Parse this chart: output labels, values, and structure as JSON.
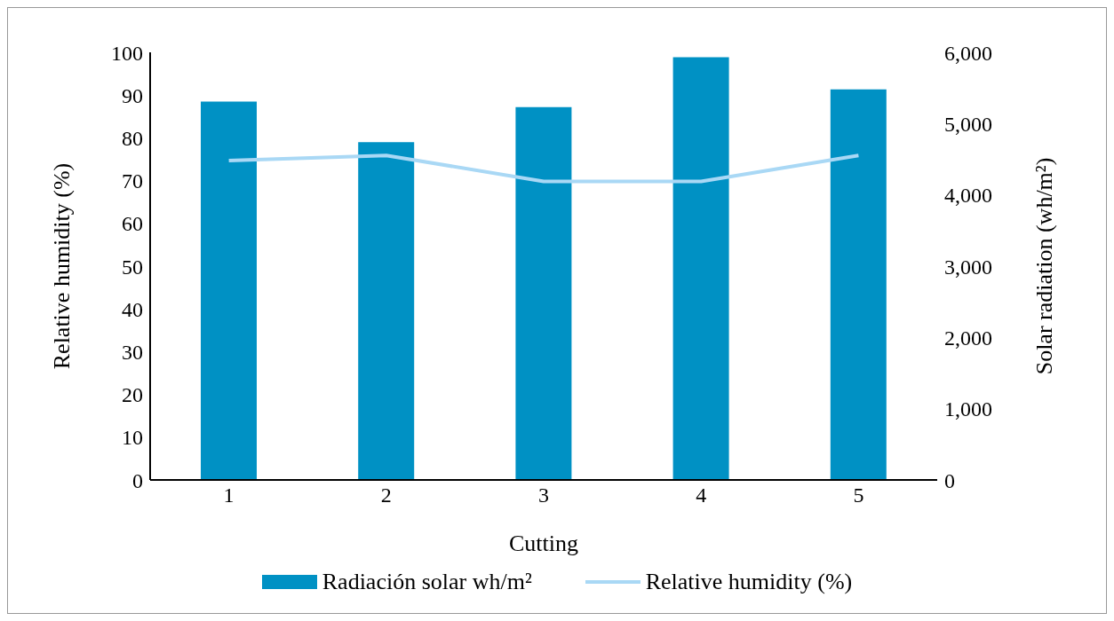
{
  "chart_data": {
    "type": "bar",
    "xlabel": "Cutting",
    "ylabel": "Relative humidity (%)",
    "y2label": "Solar radiation (wh/m²)",
    "categories": [
      "1",
      "2",
      "3",
      "4",
      "5"
    ],
    "series": [
      {
        "name": "Radiación solar wh/m²",
        "axis": "y2",
        "color": "#0091c4",
        "values": [
          5310,
          4740,
          5230,
          5930,
          5480
        ]
      },
      {
        "name": "Relative humidity (%)",
        "type": "line",
        "axis": "y",
        "color": "#a9d8f5",
        "values": [
          74.7,
          75.9,
          69.8,
          69.8,
          75.9
        ]
      }
    ],
    "ylim": [
      0,
      100
    ],
    "yticks": [
      0,
      10,
      20,
      30,
      40,
      50,
      60,
      70,
      80,
      90,
      100
    ],
    "y2lim": [
      0,
      6000
    ],
    "y2ticks": [
      {
        "value": 0,
        "label": "0"
      },
      {
        "value": 1000,
        "label": "1,000"
      },
      {
        "value": 2000,
        "label": "2,000"
      },
      {
        "value": 3000,
        "label": "3,000"
      },
      {
        "value": 4000,
        "label": "4,000"
      },
      {
        "value": 5000,
        "label": "5,000"
      },
      {
        "value": 6000,
        "label": "6,000"
      }
    ],
    "grid": false,
    "legend": "bottom",
    "marker": "none",
    "line_style": "solid"
  }
}
